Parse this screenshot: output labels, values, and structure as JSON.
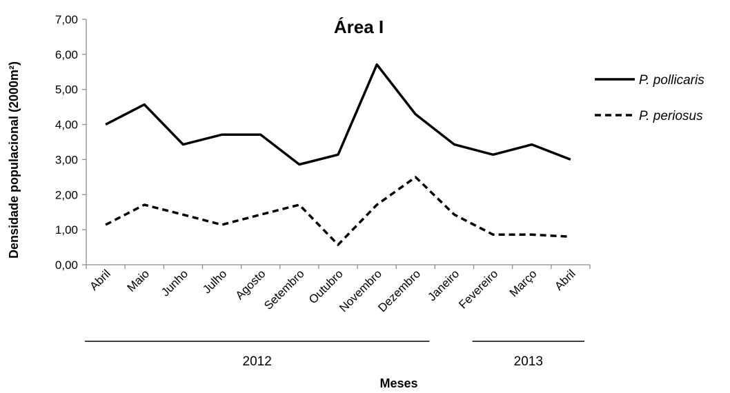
{
  "chart_data": {
    "type": "line",
    "title": "Área I",
    "xlabel": "Meses",
    "ylabel": "Densidade populacional (2000m²)",
    "ylim": [
      0,
      7
    ],
    "y_ticks": [
      "0,00",
      "1,00",
      "2,00",
      "3,00",
      "4,00",
      "5,00",
      "6,00",
      "7,00"
    ],
    "grid": false,
    "legend_position": "right",
    "categories": [
      "Abril",
      "Maio",
      "Junho",
      "Julho",
      "Agosto",
      "Setembro",
      "Outubro",
      "Novembro",
      "Dezembro",
      "Janeiro",
      "Fevereiro",
      "Março",
      "Abril"
    ],
    "year_groups": [
      {
        "label": "2012",
        "from": 0,
        "to": 8
      },
      {
        "label": "2013",
        "from": 10,
        "to": 12
      }
    ],
    "series": [
      {
        "name": "P. pollicaris",
        "style": "solid",
        "color": "#000000",
        "values": [
          4.0,
          4.57,
          3.43,
          3.71,
          3.71,
          2.86,
          3.14,
          5.71,
          4.29,
          3.43,
          3.14,
          3.43,
          3.0
        ]
      },
      {
        "name": "P. periosus",
        "style": "dashed",
        "color": "#000000",
        "values": [
          1.14,
          1.71,
          1.43,
          1.14,
          1.43,
          1.71,
          0.57,
          1.71,
          2.5,
          1.43,
          0.86,
          0.86,
          0.8
        ]
      }
    ]
  }
}
